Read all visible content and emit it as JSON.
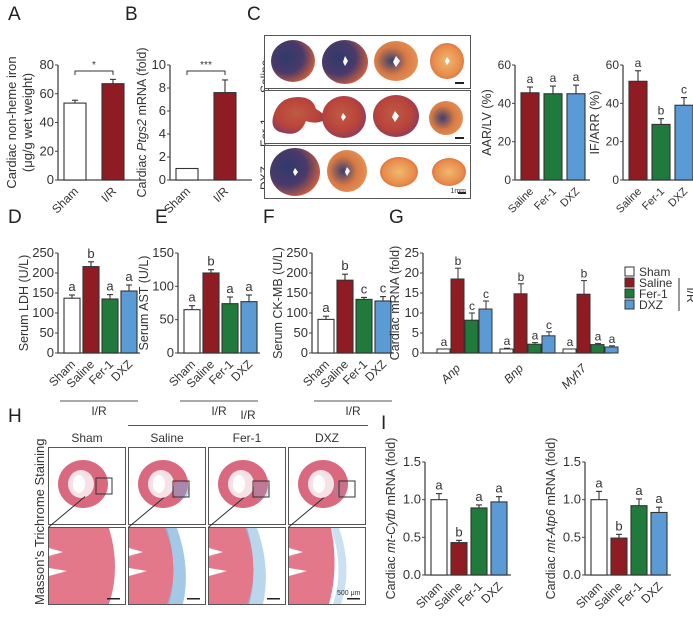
{
  "colors": {
    "sham": "#ffffff",
    "saline": "#8f1c22",
    "fer1": "#1f7a3b",
    "dxz": "#5b9bd5",
    "axis": "#444444"
  },
  "panels": {
    "A": "A",
    "B": "B",
    "C": "C",
    "D": "D",
    "E": "E",
    "F": "F",
    "G": "G",
    "H": "H",
    "I": "I"
  },
  "panelC": {
    "row_labels": [
      "Saline",
      "Fer-1",
      "DXZ"
    ],
    "scale_label": "1mm"
  },
  "panelH": {
    "group_label": "I/R",
    "column_labels": [
      "Sham",
      "Saline",
      "Fer-1",
      "DXZ"
    ],
    "row_label": "Masson's Trichrome Staining",
    "scale_label": "500 μm"
  },
  "chart_data": [
    {
      "id": "A",
      "type": "bar",
      "categories": [
        "Sham",
        "I/R"
      ],
      "values": [
        53.5,
        67
      ],
      "errors": [
        2,
        3
      ],
      "colors": [
        "sham",
        "saline"
      ],
      "ylabel": "Cardiac non-heme iron (μg/g wet weight)",
      "ylim": [
        0,
        80
      ],
      "yticks": [
        0,
        20,
        40,
        60,
        80
      ],
      "significance": [
        {
          "from": 0,
          "to": 1,
          "label": "*"
        }
      ],
      "letters": []
    },
    {
      "id": "B",
      "type": "bar",
      "categories": [
        "Sham",
        "I/R"
      ],
      "values": [
        1,
        7.6
      ],
      "errors": [
        0,
        1.1
      ],
      "colors": [
        "sham",
        "saline"
      ],
      "ylabel": "Cardiac Ptgs2 mRNA (fold)",
      "ylim": [
        0,
        10
      ],
      "yticks": [
        0,
        2,
        4,
        6,
        8,
        10
      ],
      "significance": [
        {
          "from": 0,
          "to": 1,
          "label": "***"
        }
      ],
      "letters": []
    },
    {
      "id": "C1",
      "type": "bar",
      "categories": [
        "Saline",
        "Fer-1",
        "DXZ"
      ],
      "values": [
        45.5,
        45,
        45
      ],
      "errors": [
        3,
        4,
        4.5
      ],
      "colors": [
        "saline",
        "fer1",
        "dxz"
      ],
      "ylabel": "AAR/LV (%)",
      "ylim": [
        0,
        60
      ],
      "yticks": [
        0,
        20,
        40,
        60
      ],
      "letters": [
        "a",
        "a",
        "a"
      ]
    },
    {
      "id": "C2",
      "type": "bar",
      "categories": [
        "Saline",
        "Fer-1",
        "DXZ"
      ],
      "values": [
        51.5,
        29,
        39
      ],
      "errors": [
        5.5,
        3,
        4
      ],
      "colors": [
        "saline",
        "fer1",
        "dxz"
      ],
      "ylabel": "IF/ARR (%)",
      "ylim": [
        0,
        60
      ],
      "yticks": [
        0,
        20,
        40,
        60
      ],
      "letters": [
        "a",
        "b",
        "c"
      ]
    },
    {
      "id": "D",
      "type": "bar",
      "categories": [
        "Sham",
        "Saline",
        "Fer-1",
        "DXZ"
      ],
      "values": [
        137,
        216,
        135,
        155
      ],
      "errors": [
        8,
        12,
        11,
        15
      ],
      "colors": [
        "sham",
        "saline",
        "fer1",
        "dxz"
      ],
      "ylabel": "Serum LDH (U/L)",
      "ylim": [
        0,
        250
      ],
      "yticks": [
        0,
        50,
        100,
        150,
        200,
        250
      ],
      "letters": [
        "a",
        "b",
        "a",
        "a"
      ],
      "group_label": "I/R"
    },
    {
      "id": "E",
      "type": "bar",
      "categories": [
        "Sham",
        "Saline",
        "Fer-1",
        "DXZ"
      ],
      "values": [
        65,
        120,
        74,
        77
      ],
      "errors": [
        6,
        5,
        10,
        10
      ],
      "colors": [
        "sham",
        "saline",
        "fer1",
        "dxz"
      ],
      "ylabel": "Serum AST (U/L)",
      "ylim": [
        0,
        150
      ],
      "yticks": [
        0,
        50,
        100,
        150
      ],
      "letters": [
        "a",
        "b",
        "a",
        "a"
      ],
      "group_label": "I/R"
    },
    {
      "id": "F",
      "type": "bar",
      "categories": [
        "Sham",
        "Saline",
        "Fer-1",
        "DXZ"
      ],
      "values": [
        84,
        182,
        134,
        130
      ],
      "errors": [
        8,
        15,
        5,
        11
      ],
      "colors": [
        "sham",
        "saline",
        "fer1",
        "dxz"
      ],
      "ylabel": "Serum CK-MB (U/L)",
      "ylim": [
        0,
        250
      ],
      "yticks": [
        0,
        50,
        100,
        150,
        200,
        250
      ],
      "letters": [
        "a",
        "b",
        "c",
        "c"
      ],
      "group_label": "I/R"
    },
    {
      "id": "G",
      "type": "bar",
      "categories": [
        "Anp",
        "Bnp",
        "Myh7"
      ],
      "series": [
        {
          "name": "Sham",
          "color": "sham",
          "values": [
            1,
            1,
            1
          ],
          "errors": [
            0,
            0.2,
            0
          ],
          "letters": [
            "a",
            "a",
            "a"
          ]
        },
        {
          "name": "Saline",
          "color": "saline",
          "values": [
            18.5,
            14.8,
            14.7
          ],
          "errors": [
            2.7,
            2.5,
            3.4
          ],
          "letters": [
            "b",
            "b",
            "b"
          ]
        },
        {
          "name": "Fer-1",
          "color": "fer1",
          "values": [
            8.2,
            2.2,
            2.1
          ],
          "errors": [
            1.8,
            0.4,
            0.3
          ],
          "letters": [
            "c",
            "a",
            "a"
          ]
        },
        {
          "name": "DXZ",
          "color": "dxz",
          "values": [
            11,
            4.3,
            1.5
          ],
          "errors": [
            2,
            1,
            0.3
          ],
          "letters": [
            "c",
            "c",
            "a"
          ]
        }
      ],
      "ylabel": "Cardiac mRNA (fold)",
      "ylim": [
        0,
        25
      ],
      "yticks": [
        0,
        5,
        10,
        15,
        20,
        25
      ],
      "legend": [
        "Sham",
        "Saline",
        "Fer-1",
        "DXZ"
      ],
      "legend_group": "I/R",
      "legend_position": "right"
    },
    {
      "id": "I1",
      "type": "bar",
      "categories": [
        "Sham",
        "Saline",
        "Fer-1",
        "DXZ"
      ],
      "values": [
        1.0,
        0.43,
        0.89,
        0.97
      ],
      "errors": [
        0.08,
        0.03,
        0.04,
        0.07
      ],
      "colors": [
        "sham",
        "saline",
        "fer1",
        "dxz"
      ],
      "ylabel": "Cardiac mt-Cytb mRNA (fold)",
      "ylim": [
        0,
        1.5
      ],
      "yticks": [
        "0.0",
        "0.5",
        "1.0",
        "1.5"
      ],
      "letters": [
        "a",
        "b",
        "a",
        "a"
      ],
      "group_label": "I/R"
    },
    {
      "id": "I2",
      "type": "bar",
      "categories": [
        "Sham",
        "Saline",
        "Fer-1",
        "DXZ"
      ],
      "values": [
        1.0,
        0.49,
        0.92,
        0.83
      ],
      "errors": [
        0.11,
        0.05,
        0.09,
        0.07
      ],
      "colors": [
        "sham",
        "saline",
        "fer1",
        "dxz"
      ],
      "ylabel": "Cardiac mt-Atp6 mRNA (fold)",
      "ylim": [
        0,
        1.5
      ],
      "yticks": [
        "0.0",
        "0.5",
        "1.0",
        "1.5"
      ],
      "letters": [
        "a",
        "b",
        "a",
        "a"
      ],
      "group_label": "I/R"
    }
  ]
}
